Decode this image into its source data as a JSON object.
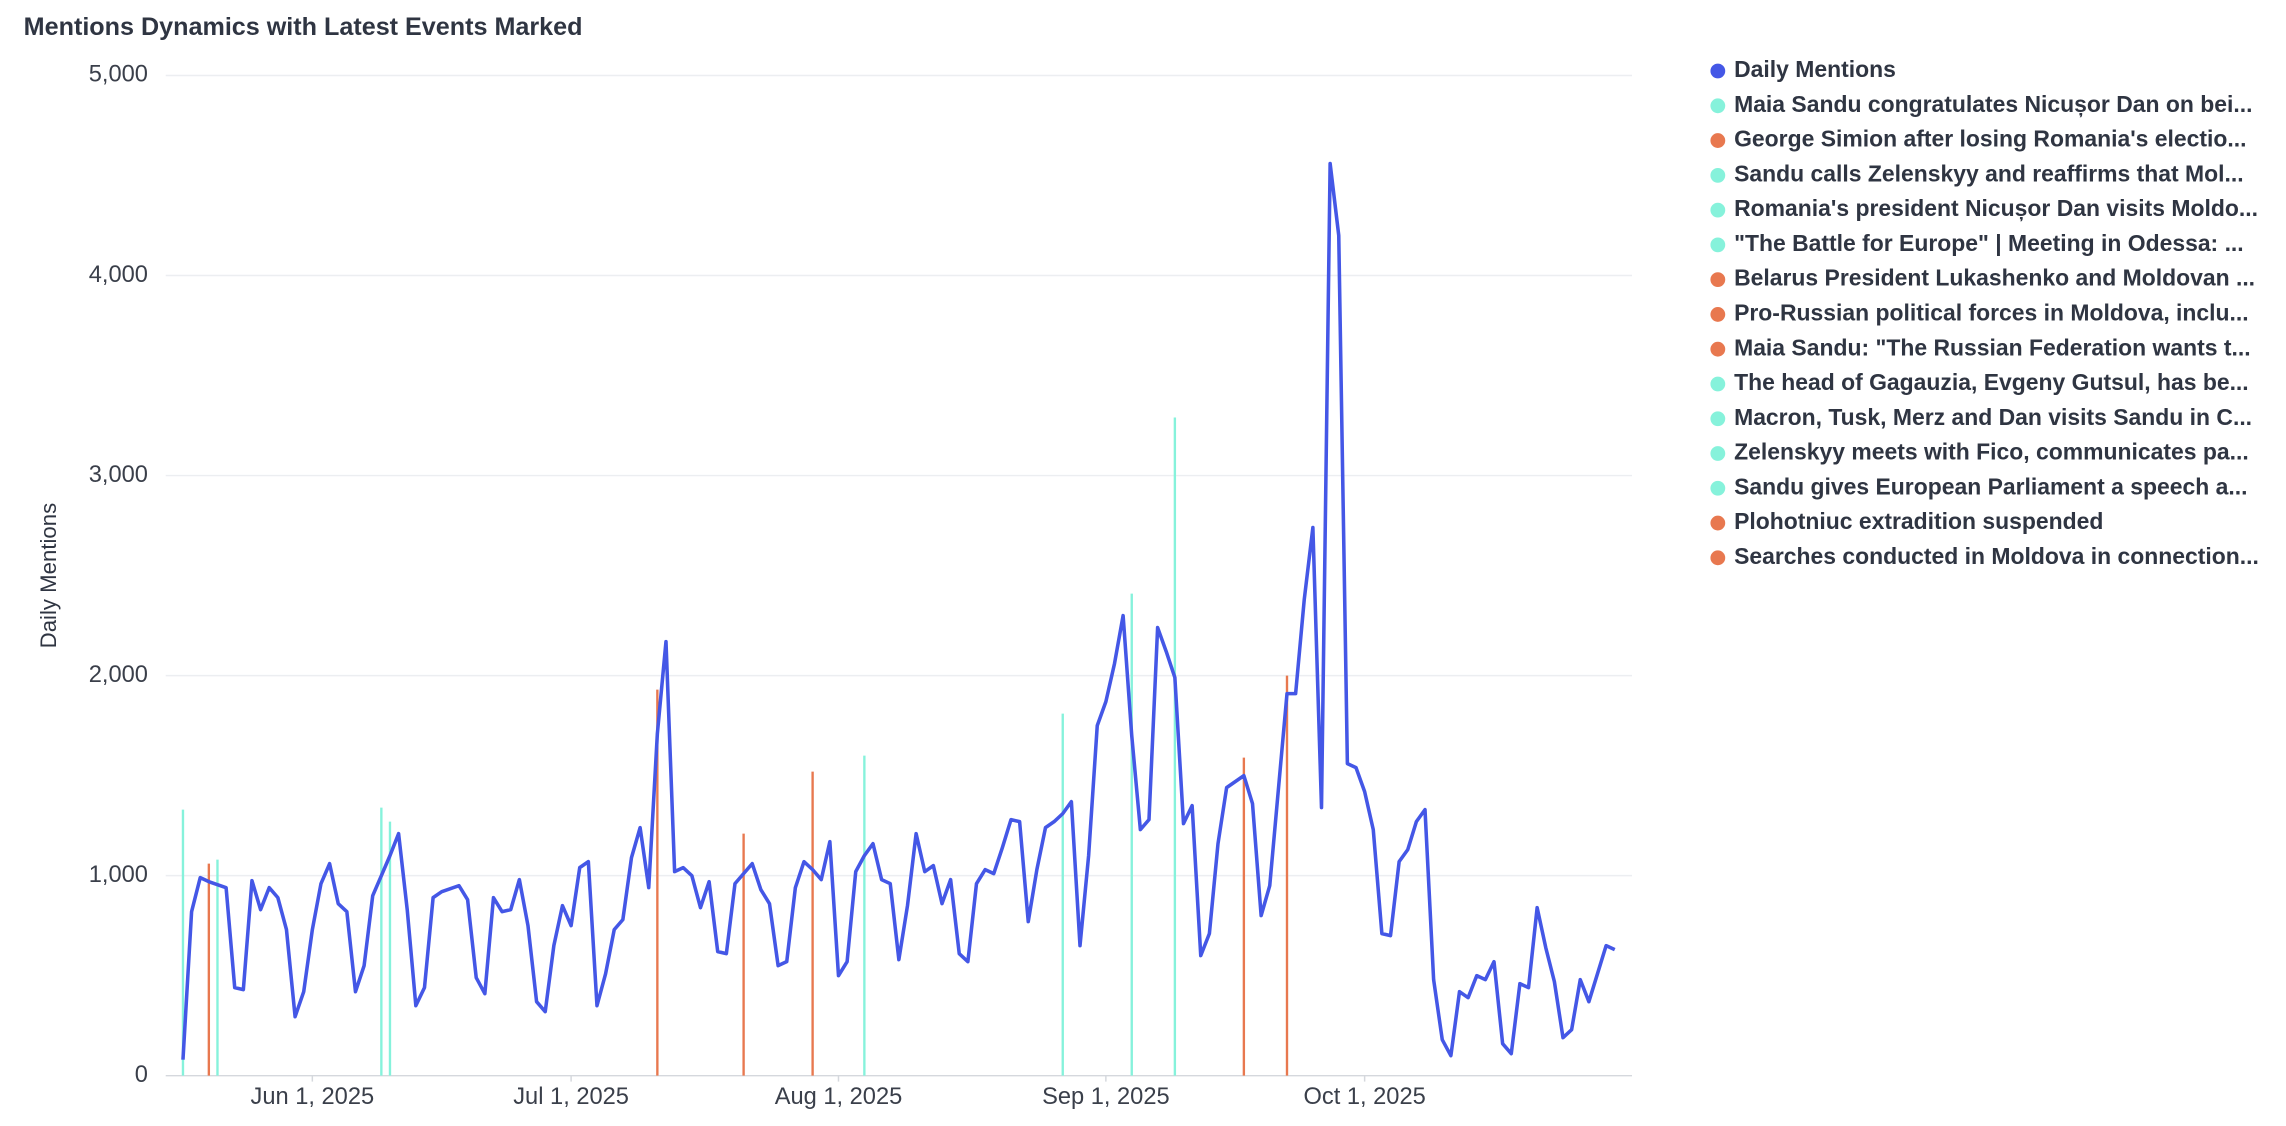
{
  "chart_data": {
    "type": "line",
    "title": "Mentions Dynamics with Latest Events Marked",
    "ylabel": "Daily Mentions",
    "ylim": [
      0,
      5000
    ],
    "yticks": [
      0,
      {
        "value": 1000,
        "label": "1,000"
      },
      {
        "value": 2000,
        "label": "2,000"
      },
      {
        "value": 3000,
        "label": "3,000"
      },
      {
        "value": 4000,
        "label": "4,000"
      },
      {
        "value": 5000,
        "label": "5,000"
      }
    ],
    "xlim": [
      "2025-05-15",
      "2025-11-01"
    ],
    "xticks": [
      {
        "value": "2025-06-01",
        "label": "Jun 1, 2025"
      },
      {
        "value": "2025-07-01",
        "label": "Jul 1, 2025"
      },
      {
        "value": "2025-08-01",
        "label": "Aug 1, 2025"
      },
      {
        "value": "2025-09-01",
        "label": "Sep 1, 2025"
      },
      {
        "value": "2025-10-01",
        "label": "Oct 1, 2025"
      }
    ],
    "grid": true,
    "legend": "right",
    "series": [
      {
        "name": "Daily Mentions",
        "color": "#4457e6",
        "values": [
          80,
          820,
          990,
          970,
          955,
          940,
          440,
          430,
          975,
          830,
          940,
          890,
          730,
          295,
          420,
          730,
          960,
          1060,
          860,
          820,
          420,
          550,
          900,
          1000,
          1100,
          1210,
          830,
          350,
          440,
          890,
          920,
          935,
          950,
          880,
          490,
          410,
          890,
          820,
          830,
          980,
          750,
          370,
          320,
          650,
          850,
          750,
          1040,
          1070,
          350,
          510,
          730,
          780,
          1090,
          1240,
          940,
          1710,
          2170,
          1020,
          1040,
          1000,
          840,
          970,
          620,
          610,
          960,
          1010,
          1060,
          930,
          860,
          550,
          570,
          940,
          1070,
          1030,
          980,
          1170,
          500,
          570,
          1020,
          1100,
          1160,
          980,
          960,
          580,
          850,
          1210,
          1020,
          1050,
          860,
          980,
          610,
          570,
          960,
          1030,
          1010,
          1140,
          1280,
          1270,
          770,
          1030,
          1240,
          1270,
          1310,
          1370,
          650,
          1100,
          1750,
          1870,
          2060,
          2300,
          1700,
          1230,
          1280,
          2240,
          2120,
          1990,
          1260,
          1350,
          600,
          710,
          1160,
          1440,
          1470,
          1500,
          1360,
          800,
          950,
          1430,
          1910,
          1910,
          2380,
          2740,
          1340,
          4560,
          4200,
          1560,
          1540,
          1420,
          1230,
          710,
          700,
          1070,
          1130,
          1270,
          1330,
          480,
          180,
          100,
          420,
          390,
          500,
          480,
          570,
          160,
          110,
          460,
          440,
          840,
          640,
          470,
          190,
          230,
          480,
          370,
          510,
          650,
          630
        ]
      }
    ],
    "x": [
      "2025-05-17",
      "2025-05-18",
      "2025-05-19",
      "2025-05-20",
      "2025-05-21",
      "2025-05-22",
      "2025-05-23",
      "2025-05-24",
      "2025-05-25",
      "2025-05-26",
      "2025-05-27",
      "2025-05-28",
      "2025-05-29",
      "2025-05-30",
      "2025-05-31",
      "2025-06-01",
      "2025-06-02",
      "2025-06-03",
      "2025-06-04",
      "2025-06-05",
      "2025-06-06",
      "2025-06-07",
      "2025-06-08",
      "2025-06-09",
      "2025-06-10",
      "2025-06-11",
      "2025-06-12",
      "2025-06-13",
      "2025-06-14",
      "2025-06-15",
      "2025-06-16",
      "2025-06-17",
      "2025-06-18",
      "2025-06-19",
      "2025-06-20",
      "2025-06-21",
      "2025-06-22",
      "2025-06-23",
      "2025-06-24",
      "2025-06-25",
      "2025-06-26",
      "2025-06-27",
      "2025-06-28",
      "2025-06-29",
      "2025-06-30",
      "2025-07-01",
      "2025-07-02",
      "2025-07-03",
      "2025-07-04",
      "2025-07-05",
      "2025-07-06",
      "2025-07-07",
      "2025-07-08",
      "2025-07-09",
      "2025-07-10",
      "2025-07-11",
      "2025-07-12",
      "2025-07-13",
      "2025-07-14",
      "2025-07-15",
      "2025-07-16",
      "2025-07-17",
      "2025-07-18",
      "2025-07-19",
      "2025-07-20",
      "2025-07-21",
      "2025-07-22",
      "2025-07-23",
      "2025-07-24",
      "2025-07-25",
      "2025-07-26",
      "2025-07-27",
      "2025-07-28",
      "2025-07-29",
      "2025-07-30",
      "2025-07-31",
      "2025-08-01",
      "2025-08-02",
      "2025-08-03",
      "2025-08-04",
      "2025-08-05",
      "2025-08-06",
      "2025-08-07",
      "2025-08-08",
      "2025-08-09",
      "2025-08-10",
      "2025-08-11",
      "2025-08-12",
      "2025-08-13",
      "2025-08-14",
      "2025-08-15",
      "2025-08-16",
      "2025-08-17",
      "2025-08-18",
      "2025-08-19",
      "2025-08-20",
      "2025-08-21",
      "2025-08-22",
      "2025-08-23",
      "2025-08-24",
      "2025-08-25",
      "2025-08-26",
      "2025-08-27",
      "2025-08-28",
      "2025-08-29",
      "2025-08-30",
      "2025-08-31",
      "2025-09-01",
      "2025-09-02",
      "2025-09-03",
      "2025-09-04",
      "2025-09-05",
      "2025-09-06",
      "2025-09-07",
      "2025-09-08",
      "2025-09-09",
      "2025-09-10",
      "2025-09-11",
      "2025-09-12",
      "2025-09-13",
      "2025-09-14",
      "2025-09-15",
      "2025-09-16",
      "2025-09-17",
      "2025-09-18",
      "2025-09-19",
      "2025-09-20",
      "2025-09-21",
      "2025-09-22",
      "2025-09-23",
      "2025-09-24",
      "2025-09-25",
      "2025-09-26",
      "2025-09-27",
      "2025-09-28",
      "2025-09-29",
      "2025-09-30",
      "2025-10-01",
      "2025-10-02",
      "2025-10-03",
      "2025-10-04",
      "2025-10-05",
      "2025-10-06",
      "2025-10-07",
      "2025-10-08",
      "2025-10-09",
      "2025-10-10",
      "2025-10-11",
      "2025-10-12",
      "2025-10-13",
      "2025-10-14",
      "2025-10-15",
      "2025-10-16",
      "2025-10-17",
      "2025-10-18",
      "2025-10-19",
      "2025-10-20",
      "2025-10-21",
      "2025-10-22",
      "2025-10-23",
      "2025-10-24",
      "2025-10-25",
      "2025-10-26",
      "2025-10-27",
      "2025-10-28",
      "2025-10-29",
      "2025-10-30"
    ],
    "events": [
      {
        "name": "Maia Sandu congratulates Nicușor Dan on bei...",
        "x": "2025-05-17",
        "value": 1330,
        "color": "#86f2db"
      },
      {
        "name": "George Simion after losing Romania's electio...",
        "x": "2025-05-20",
        "value": 1060,
        "color": "#e8784f"
      },
      {
        "name": "Sandu calls Zelenskyy and reaffirms that Mol...",
        "x": "2025-05-21",
        "value": 1080,
        "color": "#86f2db"
      },
      {
        "name": "Romania's president Nicușor Dan visits Moldo...",
        "x": "2025-06-09",
        "value": 1340,
        "color": "#86f2db"
      },
      {
        "name": "\"The Battle for Europe\" | Meeting in Odessa: ...",
        "x": "2025-06-10",
        "value": 1270,
        "color": "#86f2db"
      },
      {
        "name": "Belarus President Lukashenko and Moldovan ...",
        "x": "2025-07-11",
        "value": 1930,
        "color": "#e8784f"
      },
      {
        "name": "Pro-Russian political forces in Moldova, inclu...",
        "x": "2025-07-21",
        "value": 1210,
        "color": "#e8784f"
      },
      {
        "name": "Maia Sandu: \"The Russian Federation wants t...",
        "x": "2025-07-29",
        "value": 1520,
        "color": "#e8784f"
      },
      {
        "name": "The head of Gagauzia, Evgeny Gutsul, has be...",
        "x": "2025-08-04",
        "value": 1600,
        "color": "#86f2db"
      },
      {
        "name": "Macron, Tusk, Merz and Dan visits Sandu in C...",
        "x": "2025-08-27",
        "value": 1810,
        "color": "#86f2db"
      },
      {
        "name": "Zelenskyy meets with Fico, communicates pa...",
        "x": "2025-09-04",
        "value": 2410,
        "color": "#86f2db"
      },
      {
        "name": "Sandu gives European Parliament a speech a...",
        "x": "2025-09-09",
        "value": 3290,
        "color": "#86f2db"
      },
      {
        "name": "Plohotniuc extradition suspended",
        "x": "2025-09-17",
        "value": 1590,
        "color": "#e8784f"
      },
      {
        "name": "Searches conducted in Moldova in connection...",
        "x": "2025-09-22",
        "value": 2000,
        "color": "#e8784f"
      }
    ]
  }
}
